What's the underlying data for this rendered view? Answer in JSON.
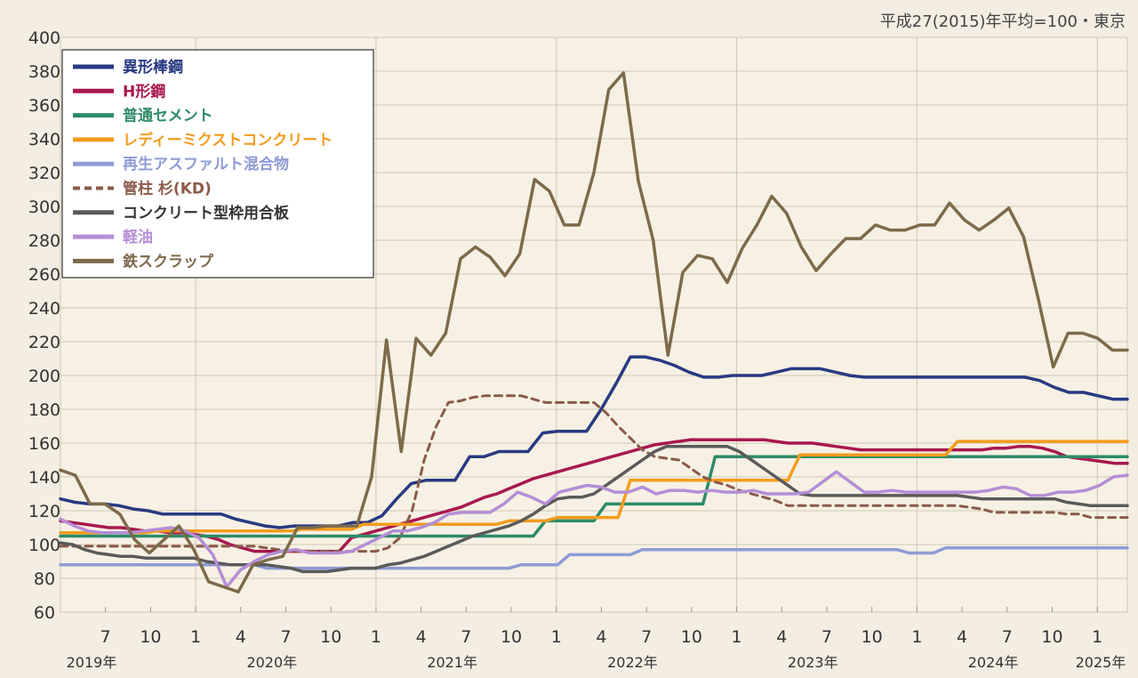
{
  "chart_data": {
    "type": "line",
    "note": "平成27(2015)年平均=100・東京",
    "ylim": [
      60,
      400
    ],
    "y_ticks": [
      "60",
      "80",
      "100",
      "120",
      "140",
      "160",
      "180",
      "200",
      "220",
      "240",
      "260",
      "280",
      "300",
      "320",
      "340",
      "360",
      "380",
      "400"
    ],
    "x_tick_labels": [
      {
        "label": "7",
        "month_index": 3
      },
      {
        "label": "10",
        "month_index": 6
      },
      {
        "label": "1",
        "month_index": 9
      },
      {
        "label": "4",
        "month_index": 12
      },
      {
        "label": "7",
        "month_index": 15
      },
      {
        "label": "10",
        "month_index": 18
      },
      {
        "label": "1",
        "month_index": 21
      },
      {
        "label": "4",
        "month_index": 24
      },
      {
        "label": "7",
        "month_index": 27
      },
      {
        "label": "10",
        "month_index": 30
      },
      {
        "label": "1",
        "month_index": 33
      },
      {
        "label": "4",
        "month_index": 36
      },
      {
        "label": "7",
        "month_index": 39
      },
      {
        "label": "10",
        "month_index": 42
      },
      {
        "label": "1",
        "month_index": 45
      },
      {
        "label": "4",
        "month_index": 48
      },
      {
        "label": "7",
        "month_index": 51
      },
      {
        "label": "10",
        "month_index": 54
      },
      {
        "label": "1",
        "month_index": 57
      },
      {
        "label": "4",
        "month_index": 60
      },
      {
        "label": "7",
        "month_index": 63
      },
      {
        "label": "10",
        "month_index": 66
      },
      {
        "label": "1",
        "month_index": 69
      }
    ],
    "year_labels": [
      {
        "label": "2019年",
        "month_index": 0
      },
      {
        "label": "2020年",
        "month_index": 12
      },
      {
        "label": "2021年",
        "month_index": 24
      },
      {
        "label": "2022年",
        "month_index": 36
      },
      {
        "label": "2023年",
        "month_index": 48
      },
      {
        "label": "2024年",
        "month_index": 60
      },
      {
        "label": "2025年",
        "month_index": 70
      }
    ],
    "x_month_range": [
      0,
      71
    ],
    "legend_position": "top-left",
    "grid": true,
    "series": [
      {
        "name": "異形棒鋼",
        "color": "#283a82",
        "dashed": false,
        "values": [
          127,
          125,
          124,
          124,
          123,
          121,
          120,
          118,
          118,
          118,
          118,
          118,
          115,
          113,
          111,
          110,
          111,
          111,
          111,
          111,
          113,
          113,
          117,
          127,
          136,
          138,
          138,
          138,
          152,
          152,
          155,
          155,
          155,
          166,
          167,
          167,
          167,
          180,
          195,
          211,
          211,
          209,
          206,
          202,
          199,
          199,
          200,
          200,
          200,
          202,
          204,
          204,
          204,
          202,
          200,
          199,
          199,
          199,
          199,
          199,
          199,
          199,
          199,
          199,
          199,
          199,
          199,
          197,
          193,
          190,
          190,
          188,
          186,
          186
        ]
      },
      {
        "name": "H形鋼",
        "color": "#a8184e",
        "dashed": false,
        "values": [
          114,
          113,
          112,
          111,
          110,
          110,
          109,
          108,
          108,
          107,
          107,
          106,
          105,
          103,
          100,
          98,
          96,
          96,
          96,
          96,
          96,
          96,
          96,
          96,
          104,
          106,
          108,
          110,
          112,
          114,
          116,
          118,
          120,
          122,
          125,
          128,
          130,
          133,
          136,
          139,
          141,
          143,
          145,
          147,
          149,
          151,
          153,
          155,
          157,
          159,
          160,
          161,
          162,
          162,
          162,
          162,
          162,
          162,
          162,
          161,
          160,
          160,
          160,
          159,
          158,
          157,
          156,
          156,
          156,
          156,
          156,
          156,
          156,
          156,
          156,
          156,
          156,
          157,
          157,
          158,
          158,
          157,
          155,
          152,
          151,
          150,
          149,
          148,
          148
        ]
      },
      {
        "name": "普通セメント",
        "color": "#2e8b68",
        "dashed": false,
        "values": [
          105,
          105,
          105,
          105,
          105,
          105,
          105,
          105,
          105,
          105,
          105,
          105,
          105,
          105,
          105,
          105,
          105,
          105,
          105,
          105,
          105,
          105,
          105,
          105,
          105,
          105,
          105,
          105,
          105,
          105,
          105,
          105,
          105,
          105,
          105,
          105,
          105,
          105,
          105,
          105,
          114,
          114,
          114,
          114,
          114,
          124,
          124,
          124,
          124,
          124,
          124,
          124,
          124,
          124,
          152,
          152,
          152,
          152,
          152,
          152,
          152,
          152,
          152,
          152,
          152,
          152,
          152,
          152,
          152,
          152,
          152,
          152,
          152,
          152,
          152,
          152,
          152,
          152,
          152,
          152,
          152,
          152,
          152,
          152,
          152,
          152,
          152,
          152,
          152
        ]
      },
      {
        "name": "レディーミクストコンクリート",
        "color": "#f39c1e",
        "dashed": false,
        "values": [
          107,
          107,
          107,
          107,
          107,
          107,
          107,
          107,
          108,
          108,
          108,
          108,
          108,
          108,
          108,
          108,
          108,
          108,
          108,
          108,
          109,
          109,
          109,
          109,
          109,
          112,
          112,
          112,
          112,
          112,
          112,
          112,
          112,
          112,
          112,
          112,
          112,
          114,
          114,
          114,
          114,
          116,
          116,
          116,
          116,
          116,
          116,
          138,
          138,
          138,
          138,
          138,
          138,
          138,
          138,
          138,
          138,
          138,
          138,
          138,
          138,
          153,
          153,
          153,
          153,
          153,
          153,
          153,
          153,
          153,
          153,
          153,
          153,
          153,
          161,
          161,
          161,
          161,
          161,
          161,
          161,
          161,
          161,
          161,
          161,
          161,
          161,
          161,
          161
        ]
      },
      {
        "name": "再生アスファルト混合物",
        "color": "#8e9bd6",
        "dashed": false,
        "values": [
          88,
          88,
          88,
          88,
          88,
          88,
          88,
          88,
          88,
          88,
          88,
          88,
          88,
          88,
          88,
          88,
          88,
          86,
          86,
          86,
          86,
          86,
          86,
          86,
          86,
          86,
          86,
          86,
          86,
          86,
          86,
          86,
          86,
          86,
          86,
          86,
          86,
          86,
          88,
          88,
          88,
          88,
          94,
          94,
          94,
          94,
          94,
          94,
          97,
          97,
          97,
          97,
          97,
          97,
          97,
          97,
          97,
          97,
          97,
          97,
          97,
          97,
          97,
          97,
          97,
          97,
          97,
          97,
          97,
          97,
          95,
          95,
          95,
          98,
          98,
          98,
          98,
          98,
          98,
          98,
          98,
          98,
          98,
          98,
          98,
          98,
          98,
          98,
          98
        ]
      },
      {
        "name": "管柱 杉(KD)",
        "color": "#8a5a4a",
        "dashed": true,
        "values": [
          99,
          99,
          99,
          99,
          99,
          99,
          99,
          99,
          99,
          99,
          99,
          99,
          99,
          99,
          99,
          99,
          99,
          98,
          97,
          96,
          96,
          96,
          96,
          96,
          96,
          96,
          96,
          98,
          104,
          120,
          150,
          170,
          184,
          185,
          187,
          188,
          188,
          188,
          188,
          186,
          184,
          184,
          184,
          184,
          184,
          178,
          170,
          163,
          156,
          152,
          151,
          150,
          145,
          140,
          137,
          135,
          132,
          130,
          128,
          126,
          123,
          123,
          123,
          123,
          123,
          123,
          123,
          123,
          123,
          123,
          123,
          123,
          123,
          123,
          123,
          122,
          121,
          119,
          119,
          119,
          119,
          119,
          119,
          118,
          118,
          116,
          116,
          116,
          116
        ]
      },
      {
        "name": "コンクリート型枠用合板",
        "color": "#5a5a5a",
        "dashed": false,
        "values": [
          101,
          100,
          97,
          95,
          94,
          93,
          93,
          92,
          92,
          92,
          92,
          92,
          90,
          89,
          88,
          88,
          88,
          88,
          87,
          86,
          84,
          84,
          84,
          85,
          86,
          86,
          86,
          88,
          89,
          91,
          93,
          96,
          99,
          102,
          105,
          107,
          109,
          111,
          114,
          118,
          123,
          127,
          128,
          128,
          130,
          135,
          140,
          145,
          150,
          155,
          158,
          158,
          158,
          158,
          158,
          158,
          155,
          150,
          145,
          140,
          135,
          130,
          129,
          129,
          129,
          129,
          129,
          129,
          129,
          129,
          129,
          129,
          129,
          129,
          129,
          128,
          127,
          127,
          127,
          127,
          127,
          127,
          127,
          125,
          124,
          123,
          123,
          123,
          123
        ]
      },
      {
        "name": "軽油",
        "color": "#b48ed6",
        "dashed": false,
        "values": [
          115,
          111,
          108,
          107,
          107,
          107,
          108,
          109,
          110,
          108,
          104,
          94,
          75,
          85,
          90,
          94,
          96,
          97,
          95,
          95,
          95,
          96,
          100,
          104,
          108,
          108,
          110,
          113,
          118,
          119,
          119,
          119,
          124,
          131,
          128,
          124,
          131,
          133,
          135,
          134,
          131,
          131,
          134,
          130,
          132,
          132,
          131,
          132,
          131,
          131,
          132,
          130,
          130,
          130,
          131,
          137,
          143,
          137,
          131,
          131,
          132,
          131,
          131,
          131,
          131,
          131,
          131,
          132,
          134,
          133,
          129,
          129,
          131,
          131,
          132,
          135,
          140,
          141
        ]
      },
      {
        "name": "鉄スクラップ",
        "color": "#7d6a4b",
        "dashed": false,
        "values": [
          144,
          141,
          124,
          124,
          118,
          103,
          95,
          103,
          111,
          97,
          78,
          75,
          72,
          88,
          91,
          93,
          110,
          110,
          111,
          111,
          111,
          140,
          221,
          155,
          222,
          212,
          225,
          269,
          276,
          270,
          259,
          272,
          316,
          309,
          289,
          289,
          320,
          369,
          379,
          315,
          280,
          212,
          261,
          271,
          269,
          255,
          275,
          289,
          306,
          296,
          276,
          262,
          272,
          281,
          281,
          289,
          286,
          286,
          289,
          289,
          302,
          292,
          286,
          292,
          299,
          282,
          245,
          205,
          225,
          225,
          222,
          215,
          215
        ]
      }
    ]
  }
}
